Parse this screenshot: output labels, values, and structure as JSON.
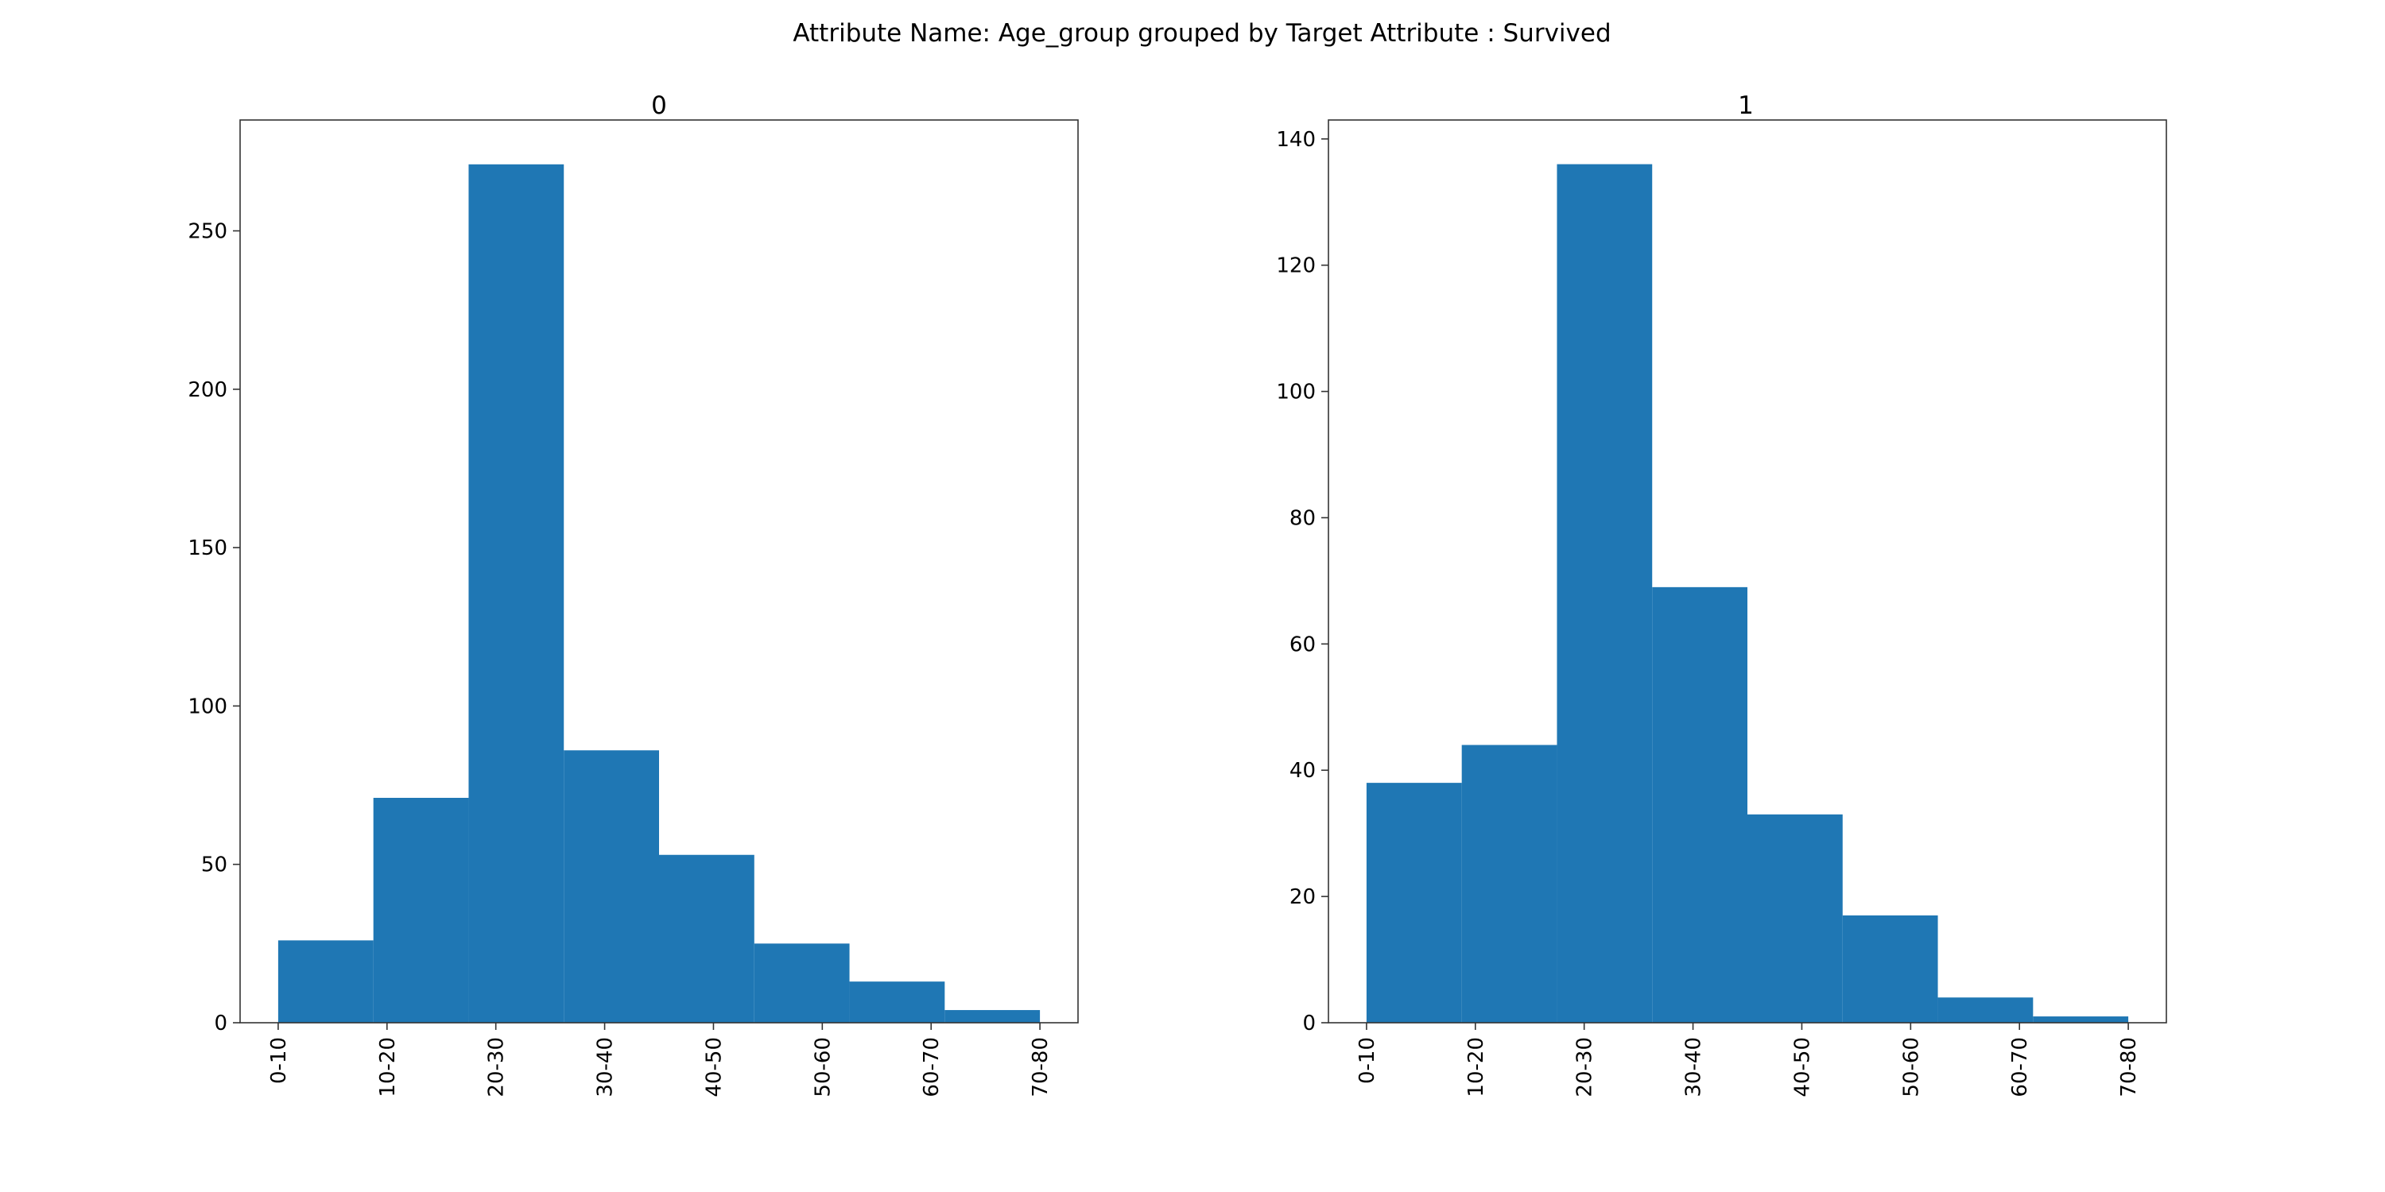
{
  "figure_title": "Attribute Name: Age_group grouped by Target Attribute : Survived",
  "colors": {
    "bar": "#1f77b4",
    "axes": "#333333",
    "background": "#ffffff"
  },
  "chart_data": [
    {
      "type": "bar",
      "title": "0",
      "xlabel": "",
      "ylabel": "",
      "categories": [
        "0-10",
        "10-20",
        "20-30",
        "30-40",
        "40-50",
        "50-60",
        "60-70",
        "70-80"
      ],
      "values": [
        26,
        71,
        271,
        86,
        53,
        25,
        13,
        4
      ],
      "ylim": [
        0,
        285
      ],
      "yticks": [
        0,
        50,
        100,
        150,
        200,
        250
      ],
      "grid": false
    },
    {
      "type": "bar",
      "title": "1",
      "xlabel": "",
      "ylabel": "",
      "categories": [
        "0-10",
        "10-20",
        "20-30",
        "30-40",
        "40-50",
        "50-60",
        "60-70",
        "70-80"
      ],
      "values": [
        38,
        44,
        136,
        69,
        33,
        17,
        4,
        1
      ],
      "ylim": [
        0,
        143
      ],
      "yticks": [
        0,
        20,
        40,
        60,
        80,
        100,
        120,
        140
      ],
      "grid": false
    }
  ]
}
